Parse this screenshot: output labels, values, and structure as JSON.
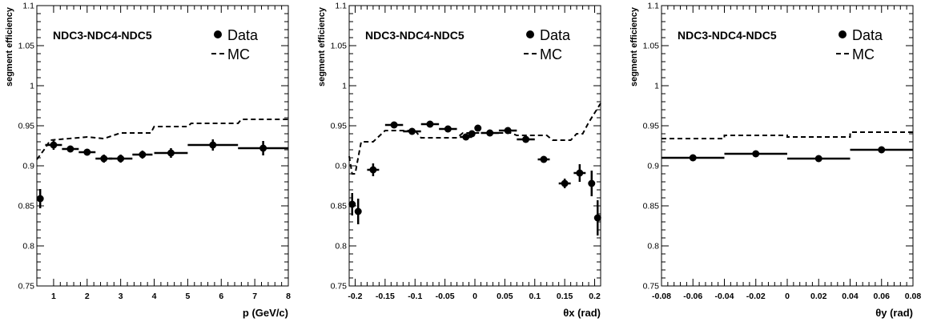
{
  "chart_data": [
    {
      "type": "scatter",
      "title": "NDC3-NDC4-NDC5",
      "xlabel": "p (GeV/c)",
      "ylabel": "segment efficiency",
      "xlim": [
        0.5,
        8
      ],
      "ylim": [
        0.75,
        1.1
      ],
      "xticks": [
        1,
        2,
        3,
        4,
        5,
        6,
        7,
        8
      ],
      "xtick_labels": [
        "1",
        "2",
        "3",
        "4",
        "5",
        "6",
        "7",
        "8"
      ],
      "yticks": [
        0.75,
        0.8,
        0.85,
        0.9,
        0.95,
        1,
        1.05,
        1.1
      ],
      "ytick_labels": [
        "0.75",
        "0.8",
        "0.85",
        "0.9",
        "0.95",
        "1",
        "1.05",
        "1.1"
      ],
      "legend": {
        "position": "top-right",
        "entries": [
          "Data",
          "MC"
        ]
      },
      "data": [
        {
          "x": 0.6,
          "y": 0.859,
          "xerr": 0.1,
          "yerr": 0.012
        },
        {
          "x": 1.0,
          "y": 0.926,
          "xerr": 0.25,
          "yerr": 0.006
        },
        {
          "x": 1.5,
          "y": 0.921,
          "xerr": 0.25,
          "yerr": 0.004
        },
        {
          "x": 2.0,
          "y": 0.917,
          "xerr": 0.25,
          "yerr": 0.004
        },
        {
          "x": 2.5,
          "y": 0.909,
          "xerr": 0.25,
          "yerr": 0.005
        },
        {
          "x": 3.0,
          "y": 0.909,
          "xerr": 0.35,
          "yerr": 0.005
        },
        {
          "x": 3.65,
          "y": 0.914,
          "xerr": 0.3,
          "yerr": 0.005
        },
        {
          "x": 4.5,
          "y": 0.916,
          "xerr": 0.5,
          "yerr": 0.006
        },
        {
          "x": 5.75,
          "y": 0.926,
          "xerr": 0.75,
          "yerr": 0.007
        },
        {
          "x": 7.25,
          "y": 0.922,
          "xerr": 0.75,
          "yerr": 0.009
        }
      ],
      "mc": [
        [
          0.5,
          0.908
        ],
        [
          0.75,
          0.922
        ],
        [
          0.9,
          0.932
        ],
        [
          2.0,
          0.936
        ],
        [
          2.5,
          0.934
        ],
        [
          3.0,
          0.941
        ],
        [
          3.9,
          0.941
        ],
        [
          4.0,
          0.949
        ],
        [
          5.0,
          0.949
        ],
        [
          5.1,
          0.953
        ],
        [
          6.5,
          0.953
        ],
        [
          6.6,
          0.958
        ],
        [
          8.0,
          0.958
        ]
      ]
    },
    {
      "type": "scatter",
      "title": "NDC3-NDC4-NDC5",
      "xlabel": "θx (rad)",
      "ylabel": "segment efficiency",
      "xlim": [
        -0.21,
        0.21
      ],
      "ylim": [
        0.75,
        1.1
      ],
      "xticks": [
        -0.2,
        -0.15,
        -0.1,
        -0.05,
        0,
        0.05,
        0.1,
        0.15,
        0.2
      ],
      "xtick_labels": [
        "-0.2",
        "-0.15",
        "-0.1",
        "-0.05",
        "0",
        "0.05",
        "0.1",
        "0.15",
        "0.2"
      ],
      "yticks": [
        0.75,
        0.8,
        0.85,
        0.9,
        0.95,
        1,
        1.05,
        1.1
      ],
      "ytick_labels": [
        "0.75",
        "0.8",
        "0.85",
        "0.9",
        "0.95",
        "1",
        "1.05",
        "1.1"
      ],
      "legend": {
        "position": "top-right",
        "entries": [
          "Data",
          "MC"
        ]
      },
      "data": [
        {
          "x": -0.205,
          "y": 0.852,
          "xerr": 0.005,
          "yerr": 0.014
        },
        {
          "x": -0.195,
          "y": 0.843,
          "xerr": 0.005,
          "yerr": 0.016
        },
        {
          "x": -0.17,
          "y": 0.895,
          "xerr": 0.01,
          "yerr": 0.008
        },
        {
          "x": -0.135,
          "y": 0.951,
          "xerr": 0.015,
          "yerr": 0.004
        },
        {
          "x": -0.105,
          "y": 0.943,
          "xerr": 0.015,
          "yerr": 0.004
        },
        {
          "x": -0.075,
          "y": 0.952,
          "xerr": 0.015,
          "yerr": 0.004
        },
        {
          "x": -0.045,
          "y": 0.946,
          "xerr": 0.015,
          "yerr": 0.004
        },
        {
          "x": -0.015,
          "y": 0.936,
          "xerr": 0.01,
          "yerr": 0.004
        },
        {
          "x": -0.005,
          "y": 0.94,
          "xerr": 0.005,
          "yerr": 0.004
        },
        {
          "x": 0.005,
          "y": 0.947,
          "xerr": 0.005,
          "yerr": 0.004
        },
        {
          "x": 0.025,
          "y": 0.941,
          "xerr": 0.015,
          "yerr": 0.004
        },
        {
          "x": 0.055,
          "y": 0.944,
          "xerr": 0.015,
          "yerr": 0.004
        },
        {
          "x": 0.085,
          "y": 0.933,
          "xerr": 0.015,
          "yerr": 0.004
        },
        {
          "x": 0.115,
          "y": 0.908,
          "xerr": 0.01,
          "yerr": 0.004
        },
        {
          "x": 0.15,
          "y": 0.878,
          "xerr": 0.01,
          "yerr": 0.006
        },
        {
          "x": 0.175,
          "y": 0.891,
          "xerr": 0.01,
          "yerr": 0.011
        },
        {
          "x": 0.195,
          "y": 0.878,
          "xerr": 0.005,
          "yerr": 0.016
        },
        {
          "x": 0.205,
          "y": 0.835,
          "xerr": 0.005,
          "yerr": 0.022
        }
      ],
      "mc": [
        [
          -0.21,
          0.912
        ],
        [
          -0.205,
          0.89
        ],
        [
          -0.2,
          0.89
        ],
        [
          -0.195,
          0.91
        ],
        [
          -0.19,
          0.93
        ],
        [
          -0.17,
          0.93
        ],
        [
          -0.15,
          0.944
        ],
        [
          -0.1,
          0.944
        ],
        [
          -0.09,
          0.935
        ],
        [
          -0.03,
          0.935
        ],
        [
          -0.02,
          0.941
        ],
        [
          0.06,
          0.941
        ],
        [
          0.07,
          0.938
        ],
        [
          0.12,
          0.938
        ],
        [
          0.13,
          0.932
        ],
        [
          0.16,
          0.932
        ],
        [
          0.17,
          0.94
        ],
        [
          0.18,
          0.94
        ],
        [
          0.19,
          0.954
        ],
        [
          0.2,
          0.966
        ],
        [
          0.21,
          0.978
        ]
      ]
    },
    {
      "type": "scatter",
      "title": "NDC3-NDC4-NDC5",
      "xlabel": "θy (rad)",
      "ylabel": "segment efficiency",
      "xlim": [
        -0.08,
        0.08
      ],
      "ylim": [
        0.75,
        1.1
      ],
      "xticks": [
        -0.08,
        -0.06,
        -0.04,
        -0.02,
        0,
        0.02,
        0.04,
        0.06,
        0.08
      ],
      "xtick_labels": [
        "-0.08",
        "-0.06",
        "-0.04",
        "-0.02",
        "0",
        "0.02",
        "0.04",
        "0.06",
        "0.08"
      ],
      "yticks": [
        0.75,
        0.8,
        0.85,
        0.9,
        0.95,
        1,
        1.05,
        1.1
      ],
      "ytick_labels": [
        "0.75",
        "0.8",
        "0.85",
        "0.9",
        "0.95",
        "1",
        "1.05",
        "1.1"
      ],
      "legend": {
        "position": "top-right",
        "entries": [
          "Data",
          "MC"
        ]
      },
      "data": [
        {
          "x": -0.06,
          "y": 0.91,
          "xerr": 0.02,
          "yerr": 0.002
        },
        {
          "x": -0.02,
          "y": 0.915,
          "xerr": 0.02,
          "yerr": 0.002
        },
        {
          "x": 0.02,
          "y": 0.909,
          "xerr": 0.02,
          "yerr": 0.002
        },
        {
          "x": 0.06,
          "y": 0.92,
          "xerr": 0.02,
          "yerr": 0.002
        }
      ],
      "mc": [
        [
          -0.08,
          0.934
        ],
        [
          -0.04,
          0.934
        ],
        [
          -0.04,
          0.938
        ],
        [
          0.0,
          0.938
        ],
        [
          0.0,
          0.936
        ],
        [
          0.04,
          0.936
        ],
        [
          0.04,
          0.942
        ],
        [
          0.08,
          0.942
        ]
      ]
    }
  ]
}
